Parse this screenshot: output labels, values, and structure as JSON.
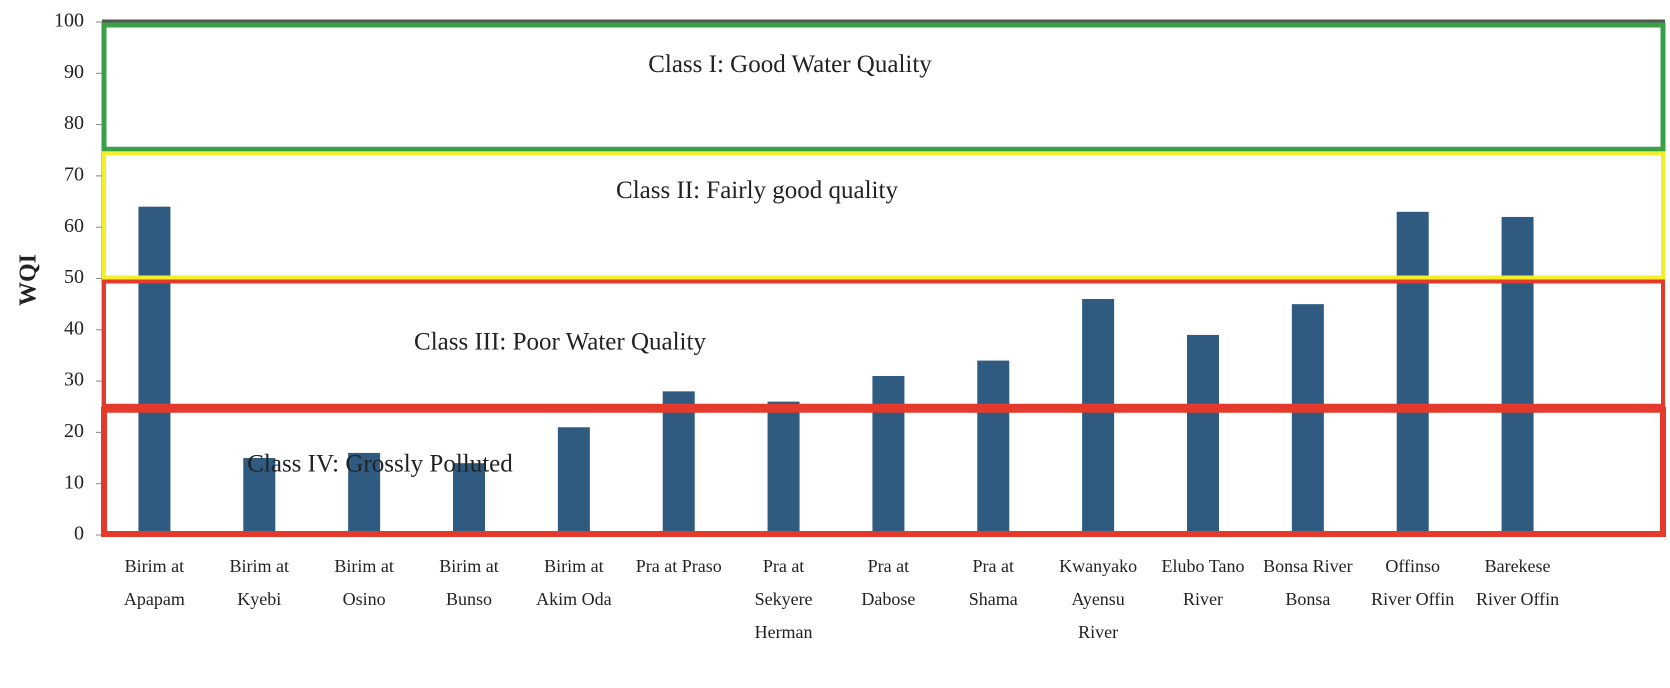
{
  "chart_data": {
    "type": "bar",
    "y_label": "WQI",
    "categories": [
      [
        "Birim at",
        "Apapam"
      ],
      [
        "Birim at",
        "Kyebi"
      ],
      [
        "Birim at",
        "Osino"
      ],
      [
        "Birim at",
        "Bunso"
      ],
      [
        "Birim at",
        "Akim Oda"
      ],
      [
        "Pra at Praso"
      ],
      [
        "Pra at",
        "Sekyere",
        "Herman"
      ],
      [
        "Pra at",
        "Dabose"
      ],
      [
        "Pra at",
        "Shama"
      ],
      [
        "Kwanyako",
        "Ayensu",
        "River"
      ],
      [
        "Elubo Tano",
        "River"
      ],
      [
        "Bonsa River",
        "Bonsa"
      ],
      [
        "Offinso",
        "River Offin"
      ],
      [
        "Barekese",
        "River Offin"
      ]
    ],
    "values": [
      64,
      15,
      16,
      14,
      21,
      28,
      26,
      31,
      34,
      46,
      39,
      45,
      63,
      62
    ],
    "color": "#2e5b7f",
    "ylim": [
      0,
      100
    ],
    "yticks": [
      0,
      10,
      20,
      30,
      40,
      50,
      60,
      70,
      80,
      90,
      100
    ],
    "annotations": [
      {
        "text": "Class I: Good Water Quality",
        "range": [
          75,
          100
        ],
        "color": "#3aa048"
      },
      {
        "text": "Class II: Fairly good quality",
        "range": [
          50,
          75
        ],
        "color": "#f2ef2a"
      },
      {
        "text": "Class III: Poor Water Quality",
        "range": [
          25,
          50
        ],
        "color": "#e43a2c"
      },
      {
        "text": "Class IV: Grossly Polluted",
        "range": [
          0,
          25
        ],
        "color": "#e43a2c"
      }
    ]
  }
}
